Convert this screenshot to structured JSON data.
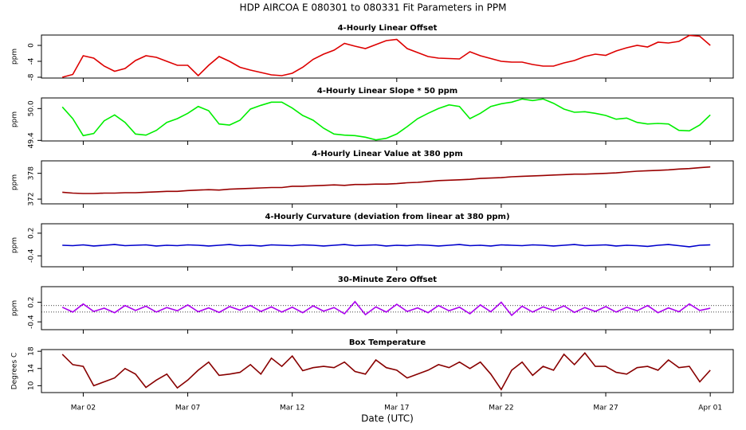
{
  "title": "HDP   AIRCOA E   080301 to 080331   Fit Parameters in PPM",
  "chart_data": [
    {
      "type": "line",
      "title": "4-Hourly Linear Offset",
      "ylabel": "ppm",
      "color": "#dd0000",
      "xlim": [
        0,
        33.1
      ],
      "ylim": [
        -8.2,
        2.6
      ],
      "yticks": [
        -8,
        -4,
        0
      ],
      "x": [
        1,
        1.5,
        2,
        2.5,
        3,
        3.5,
        4,
        4.5,
        5,
        5.5,
        6,
        6.5,
        7,
        7.5,
        8,
        8.5,
        9,
        9.5,
        10,
        10.5,
        11,
        11.5,
        12,
        12.5,
        13,
        13.5,
        14,
        14.5,
        15,
        15.5,
        16,
        16.5,
        17,
        17.5,
        18,
        18.5,
        19,
        19.5,
        20,
        20.5,
        21,
        21.5,
        22,
        22.5,
        23,
        23.5,
        24,
        24.5,
        25,
        25.5,
        26,
        26.5,
        27,
        27.5,
        28,
        28.5,
        29,
        29.5,
        30,
        30.5,
        31,
        31.5,
        32
      ],
      "values": [
        -8,
        -7.3,
        -2.6,
        -3.2,
        -5.2,
        -6.5,
        -5.8,
        -3.8,
        -2.6,
        -3,
        -4,
        -5,
        -5,
        -7.6,
        -5,
        -2.8,
        -4,
        -5.5,
        -6.2,
        -6.8,
        -7.4,
        -7.6,
        -7,
        -5.5,
        -3.5,
        -2.2,
        -1.2,
        0.5,
        -0.2,
        -0.8,
        0.2,
        1.2,
        1.5,
        -0.8,
        -1.8,
        -2.8,
        -3.2,
        -3.3,
        -3.4,
        -1.6,
        -2.6,
        -3.3,
        -4,
        -4.2,
        -4.2,
        -4.8,
        -5.2,
        -5.2,
        -4.4,
        -3.8,
        -2.8,
        -2.2,
        -2.5,
        -1.4,
        -0.6,
        0,
        -0.4,
        0.8,
        0.6,
        1,
        2.5,
        2.3,
        0
      ]
    },
    {
      "type": "line",
      "title": "4-Hourly Linear Slope * 50 ppm",
      "ylabel": "ppm",
      "color": "#00ee00",
      "xlim": [
        0,
        33.1
      ],
      "ylim": [
        49.39,
        50.2
      ],
      "yticks": [
        49.4,
        {
          "value": 50,
          "label": "50.0"
        }
      ],
      "x": [
        1,
        1.5,
        2,
        2.5,
        3,
        3.5,
        4,
        4.5,
        5,
        5.5,
        6,
        6.5,
        7,
        7.5,
        8,
        8.5,
        9,
        9.5,
        10,
        10.5,
        11,
        11.5,
        12,
        12.5,
        13,
        13.5,
        14,
        14.5,
        15,
        15.5,
        16,
        16.5,
        17,
        17.5,
        18,
        18.5,
        19,
        19.5,
        20,
        20.5,
        21,
        21.5,
        22,
        22.5,
        23,
        23.5,
        24,
        24.5,
        25,
        25.5,
        26,
        26.5,
        27,
        27.5,
        28,
        28.5,
        29,
        29.5,
        30,
        30.5,
        31,
        31.5,
        32
      ],
      "values": [
        50.03,
        49.81,
        49.49,
        49.53,
        49.77,
        49.88,
        49.74,
        49.52,
        49.5,
        49.59,
        49.74,
        49.81,
        49.91,
        50.04,
        49.96,
        49.71,
        49.69,
        49.78,
        49.99,
        50.06,
        50.12,
        50.12,
        50.01,
        49.87,
        49.78,
        49.63,
        49.52,
        49.5,
        49.49,
        49.46,
        49.41,
        49.44,
        49.52,
        49.66,
        49.81,
        49.91,
        50,
        50.07,
        50.04,
        49.81,
        49.91,
        50.04,
        50.09,
        50.12,
        50.18,
        50.15,
        50.18,
        50.1,
        49.99,
        49.93,
        49.94,
        49.91,
        49.87,
        49.8,
        49.82,
        49.74,
        49.71,
        49.72,
        49.71,
        49.59,
        49.58,
        49.69,
        49.88
      ]
    },
    {
      "type": "line",
      "title": "4-Hourly Linear Value at 380 ppm",
      "ylabel": "ppm",
      "color": "#990000",
      "xlim": [
        0,
        33.1
      ],
      "ylim": [
        370.9,
        380.9
      ],
      "yticks": [
        372,
        378
      ],
      "x": [
        1,
        1.5,
        2,
        2.5,
        3,
        3.5,
        4,
        4.5,
        5,
        5.5,
        6,
        6.5,
        7,
        7.5,
        8,
        8.5,
        9,
        9.5,
        10,
        10.5,
        11,
        11.5,
        12,
        12.5,
        13,
        13.5,
        14,
        14.5,
        15,
        15.5,
        16,
        16.5,
        17,
        17.5,
        18,
        18.5,
        19,
        19.5,
        20,
        20.5,
        21,
        21.5,
        22,
        22.5,
        23,
        23.5,
        24,
        24.5,
        25,
        25.5,
        26,
        26.5,
        27,
        27.5,
        28,
        28.5,
        29,
        29.5,
        30,
        30.5,
        31,
        31.5,
        32
      ],
      "values": [
        373.6,
        373.4,
        373.3,
        373.3,
        373.4,
        373.4,
        373.5,
        373.5,
        373.6,
        373.7,
        373.8,
        373.8,
        374.0,
        374.1,
        374.2,
        374.1,
        374.3,
        374.4,
        374.5,
        374.6,
        374.7,
        374.7,
        375.0,
        375.0,
        375.1,
        375.2,
        375.3,
        375.2,
        375.4,
        375.4,
        375.5,
        375.5,
        375.6,
        375.8,
        375.9,
        376.1,
        376.3,
        376.4,
        376.5,
        376.6,
        376.8,
        376.9,
        377.0,
        377.2,
        377.3,
        377.4,
        377.5,
        377.6,
        377.7,
        377.8,
        377.8,
        377.9,
        378.0,
        378.1,
        378.3,
        378.5,
        378.6,
        378.7,
        378.8,
        379.0,
        379.1,
        379.3,
        379.5
      ]
    },
    {
      "type": "line",
      "title": "4-Hourly Curvature (deviation from linear at 380 ppm)",
      "ylabel": "ppm",
      "color": "#0000cc",
      "xlim": [
        0,
        33.1
      ],
      "ylim": [
        -0.69,
        0.45
      ],
      "yticks": [
        -0.4,
        0.2
      ],
      "x": [
        1,
        1.5,
        2,
        2.5,
        3,
        3.5,
        4,
        4.5,
        5,
        5.5,
        6,
        6.5,
        7,
        7.5,
        8,
        8.5,
        9,
        9.5,
        10,
        10.5,
        11,
        11.5,
        12,
        12.5,
        13,
        13.5,
        14,
        14.5,
        15,
        15.5,
        16,
        16.5,
        17,
        17.5,
        18,
        18.5,
        19,
        19.5,
        20,
        20.5,
        21,
        21.5,
        22,
        22.5,
        23,
        23.5,
        24,
        24.5,
        25,
        25.5,
        26,
        26.5,
        27,
        27.5,
        28,
        28.5,
        29,
        29.5,
        30,
        30.5,
        31,
        31.5,
        32
      ],
      "values": [
        -0.12,
        -0.13,
        -0.11,
        -0.14,
        -0.12,
        -0.1,
        -0.13,
        -0.12,
        -0.11,
        -0.14,
        -0.12,
        -0.13,
        -0.11,
        -0.12,
        -0.14,
        -0.12,
        -0.1,
        -0.13,
        -0.12,
        -0.14,
        -0.11,
        -0.12,
        -0.13,
        -0.11,
        -0.12,
        -0.14,
        -0.12,
        -0.1,
        -0.13,
        -0.12,
        -0.11,
        -0.14,
        -0.12,
        -0.13,
        -0.11,
        -0.12,
        -0.14,
        -0.12,
        -0.1,
        -0.13,
        -0.12,
        -0.14,
        -0.11,
        -0.12,
        -0.13,
        -0.11,
        -0.12,
        -0.14,
        -0.12,
        -0.1,
        -0.13,
        -0.12,
        -0.11,
        -0.14,
        -0.12,
        -0.13,
        -0.15,
        -0.12,
        -0.1,
        -0.13,
        -0.16,
        -0.12,
        -0.11
      ]
    },
    {
      "type": "line",
      "title": "30-Minute Zero Offset",
      "ylabel": "ppm",
      "color": "#aa00ee",
      "xlim": [
        0,
        33.1
      ],
      "ylim": [
        -0.64,
        0.68
      ],
      "yticks": [
        -0.4,
        0.2
      ],
      "ref_lines": [
        0.1,
        -0.1
      ],
      "x": [
        1,
        1.5,
        2,
        2.5,
        3,
        3.5,
        4,
        4.5,
        5,
        5.5,
        6,
        6.5,
        7,
        7.5,
        8,
        8.5,
        9,
        9.5,
        10,
        10.5,
        11,
        11.5,
        12,
        12.5,
        13,
        13.5,
        14,
        14.5,
        15,
        15.5,
        16,
        16.5,
        17,
        17.5,
        18,
        18.5,
        19,
        19.5,
        20,
        20.5,
        21,
        21.5,
        22,
        22.5,
        23,
        23.5,
        24,
        24.5,
        25,
        25.5,
        26,
        26.5,
        27,
        27.5,
        28,
        28.5,
        29,
        29.5,
        30,
        30.5,
        31,
        31.5,
        32
      ],
      "values": [
        0.05,
        -0.1,
        0.15,
        -0.08,
        0.02,
        -0.12,
        0.1,
        -0.05,
        0.08,
        -0.1,
        0.04,
        -0.06,
        0.12,
        -0.09,
        0.03,
        -0.11,
        0.07,
        -0.04,
        0.1,
        -0.08,
        0.06,
        -0.1,
        0.05,
        -0.12,
        0.09,
        -0.07,
        0.04,
        -0.15,
        0.22,
        -0.18,
        0.06,
        -0.1,
        0.14,
        -0.08,
        0.03,
        -0.12,
        0.1,
        -0.06,
        0.05,
        -0.15,
        0.12,
        -0.09,
        0.2,
        -0.2,
        0.08,
        -0.1,
        0.06,
        -0.05,
        0.09,
        -0.11,
        0.04,
        -0.08,
        0.07,
        -0.1,
        0.05,
        -0.06,
        0.1,
        -0.12,
        0.03,
        -0.09,
        0.15,
        -0.05,
        0.02
      ]
    },
    {
      "type": "line",
      "title": "Box Temperature",
      "ylabel": "Degrees C",
      "xlabel": "Date (UTC)",
      "color": "#880000",
      "xlim": [
        0,
        33.1
      ],
      "ylim": [
        8.4,
        18.4
      ],
      "yticks": [
        10,
        14,
        18
      ],
      "xticks": [
        {
          "value": 2,
          "label": "Mar 02"
        },
        {
          "value": 7,
          "label": "Mar 07"
        },
        {
          "value": 12,
          "label": "Mar 12"
        },
        {
          "value": 17,
          "label": "Mar 17"
        },
        {
          "value": 22,
          "label": "Mar 22"
        },
        {
          "value": 27,
          "label": "Mar 27"
        },
        {
          "value": 32,
          "label": "Apr 01"
        }
      ],
      "x": [
        1,
        1.5,
        2,
        2.5,
        3,
        3.5,
        4,
        4.5,
        5,
        5.5,
        6,
        6.5,
        7,
        7.5,
        8,
        8.5,
        9,
        9.5,
        10,
        10.5,
        11,
        11.5,
        12,
        12.5,
        13,
        13.5,
        14,
        14.5,
        15,
        15.5,
        16,
        16.5,
        17,
        17.5,
        18,
        18.5,
        19,
        19.5,
        20,
        20.5,
        21,
        21.5,
        22,
        22.5,
        23,
        23.5,
        24,
        24.5,
        25,
        25.5,
        26,
        26.5,
        27,
        27.5,
        28,
        28.5,
        29,
        29.5,
        30,
        30.5,
        31,
        31.5,
        32
      ],
      "values": [
        17.3,
        14.9,
        14.5,
        10.0,
        10.9,
        11.8,
        14.0,
        12.7,
        9.6,
        11.3,
        12.7,
        9.5,
        11.3,
        13.6,
        15.5,
        12.4,
        12.7,
        13.1,
        14.9,
        12.7,
        16.4,
        14.5,
        16.9,
        13.5,
        14.2,
        14.5,
        14.2,
        15.5,
        13.3,
        12.7,
        16.0,
        14.2,
        13.6,
        11.8,
        12.7,
        13.6,
        14.9,
        14.2,
        15.5,
        14.0,
        15.5,
        12.7,
        9.1,
        13.6,
        15.5,
        12.4,
        14.5,
        13.6,
        17.3,
        14.9,
        17.6,
        14.5,
        14.5,
        13.1,
        12.7,
        14.2,
        14.5,
        13.6,
        16.0,
        14.2,
        14.5,
        10.9,
        13.6
      ]
    }
  ]
}
